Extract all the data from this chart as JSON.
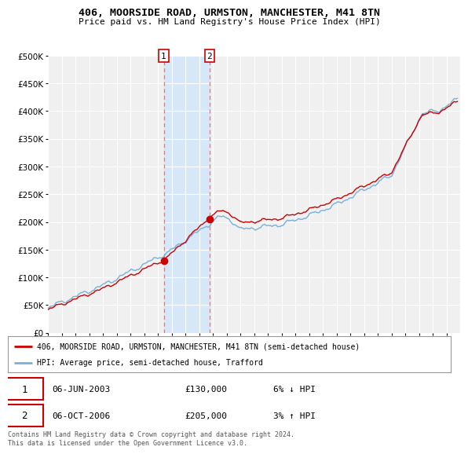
{
  "title": "406, MOORSIDE ROAD, URMSTON, MANCHESTER, M41 8TN",
  "subtitle": "Price paid vs. HM Land Registry's House Price Index (HPI)",
  "ylim": [
    0,
    500000
  ],
  "yticks": [
    0,
    50000,
    100000,
    150000,
    200000,
    250000,
    300000,
    350000,
    400000,
    450000,
    500000
  ],
  "ytick_labels": [
    "£0",
    "£50K",
    "£100K",
    "£150K",
    "£200K",
    "£250K",
    "£300K",
    "£350K",
    "£400K",
    "£450K",
    "£500K"
  ],
  "plot_bg_color": "#f0f0f0",
  "grid_color": "#ffffff",
  "purchase1_x": 2003.43,
  "purchase1_price": 130000,
  "purchase2_x": 2006.76,
  "purchase2_price": 205000,
  "shade_color": "#d6e8f7",
  "vline_color": "#e87878",
  "red_line_color": "#cc0000",
  "blue_line_color": "#7ab0d8",
  "legend_entry1": "406, MOORSIDE ROAD, URMSTON, MANCHESTER, M41 8TN (semi-detached house)",
  "legend_entry2": "HPI: Average price, semi-detached house, Trafford",
  "table_entry1_date": "06-JUN-2003",
  "table_entry1_price": "£130,000",
  "table_entry1_hpi": "6% ↓ HPI",
  "table_entry2_date": "06-OCT-2006",
  "table_entry2_price": "£205,000",
  "table_entry2_hpi": "3% ↑ HPI",
  "footer": "Contains HM Land Registry data © Crown copyright and database right 2024.\nThis data is licensed under the Open Government Licence v3.0.",
  "xmin": 1995,
  "xmax": 2025
}
